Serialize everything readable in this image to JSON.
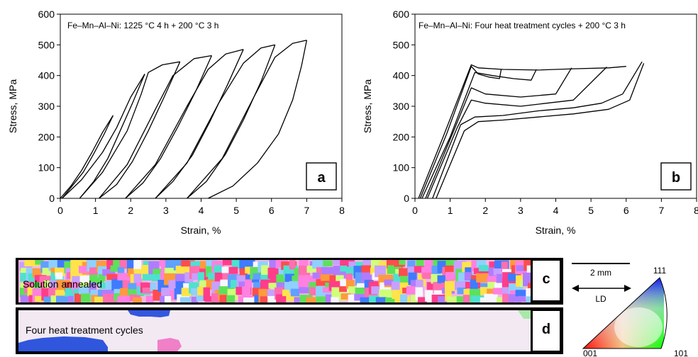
{
  "chart_data": [
    {
      "panel_label": "a",
      "type": "line",
      "title": "Fe–Mn–Al–Ni: 1225 °C 4 h + 200 °C 3 h",
      "xlabel": "Strain, %",
      "ylabel": "Stress, MPa",
      "xlim": [
        0,
        8
      ],
      "ylim": [
        0,
        600
      ],
      "xticks": [
        0,
        1,
        2,
        3,
        4,
        5,
        6,
        7,
        8
      ],
      "yticks": [
        0,
        100,
        200,
        300,
        400,
        500,
        600
      ],
      "grid": false,
      "series": [
        {
          "x": [
            0,
            0.3,
            0.6,
            0.9,
            1.2,
            1.5
          ],
          "y": [
            0,
            40,
            90,
            150,
            215,
            270
          ]
        },
        {
          "x": [
            1.5,
            1.25,
            0.95,
            0.65,
            0.3,
            0.05
          ],
          "y": [
            270,
            210,
            145,
            85,
            35,
            0
          ]
        },
        {
          "x": [
            0.05,
            0.6,
            1.2,
            1.6,
            2.0,
            2.4
          ],
          "y": [
            0,
            60,
            150,
            230,
            330,
            405
          ]
        },
        {
          "x": [
            2.4,
            2.05,
            1.7,
            1.35,
            0.95,
            0.55
          ],
          "y": [
            405,
            310,
            220,
            130,
            55,
            0
          ]
        },
        {
          "x": [
            0.55,
            1.2,
            1.9,
            2.3,
            2.5,
            2.9,
            3.4
          ],
          "y": [
            0,
            85,
            220,
            340,
            410,
            435,
            445
          ]
        },
        {
          "x": [
            3.4,
            2.95,
            2.5,
            2.05,
            1.6,
            1.1
          ],
          "y": [
            445,
            330,
            220,
            120,
            45,
            0
          ]
        },
        {
          "x": [
            1.1,
            1.9,
            2.7,
            3.2,
            3.8,
            4.3
          ],
          "y": [
            0,
            110,
            290,
            400,
            455,
            465
          ]
        },
        {
          "x": [
            4.3,
            3.85,
            3.35,
            2.85,
            2.35,
            1.85
          ],
          "y": [
            465,
            350,
            235,
            130,
            50,
            0
          ]
        },
        {
          "x": [
            1.85,
            2.7,
            3.6,
            4.2,
            4.7,
            5.2
          ],
          "y": [
            0,
            110,
            300,
            420,
            470,
            485
          ]
        },
        {
          "x": [
            5.2,
            4.75,
            4.25,
            3.75,
            3.2,
            2.7
          ],
          "y": [
            485,
            370,
            250,
            140,
            55,
            0
          ]
        },
        {
          "x": [
            2.7,
            3.6,
            4.5,
            5.2,
            5.7,
            6.1
          ],
          "y": [
            0,
            115,
            310,
            440,
            490,
            500
          ]
        },
        {
          "x": [
            6.1,
            5.7,
            5.2,
            4.7,
            4.15,
            3.6
          ],
          "y": [
            500,
            380,
            255,
            145,
            55,
            0
          ]
        },
        {
          "x": [
            3.6,
            4.6,
            5.5,
            6.1,
            6.6,
            7.0
          ],
          "y": [
            0,
            130,
            330,
            460,
            505,
            515
          ]
        },
        {
          "x": [
            7.0,
            6.85,
            6.6,
            6.2,
            5.6,
            4.9,
            4.2
          ],
          "y": [
            515,
            430,
            320,
            210,
            115,
            40,
            0
          ]
        }
      ]
    },
    {
      "panel_label": "b",
      "type": "line",
      "title": "Fe–Mn–Al–Ni: Four heat treatment cycles + 200 °C 3 h",
      "xlabel": "Strain, %",
      "ylabel": "Stress, MPa",
      "xlim": [
        0,
        8
      ],
      "ylim": [
        0,
        600
      ],
      "xticks": [
        0,
        1,
        2,
        3,
        4,
        5,
        6,
        7,
        8
      ],
      "yticks": [
        0,
        100,
        200,
        300,
        400,
        500,
        600
      ],
      "grid": false,
      "series": [
        {
          "x": [
            0.1,
            0.8,
            1.6,
            1.8,
            2.5,
            3.5,
            4.5,
            5.5,
            6.0
          ],
          "y": [
            0,
            200,
            435,
            425,
            420,
            418,
            422,
            425,
            430
          ]
        },
        {
          "x": [
            0.15,
            0.9,
            1.6,
            1.8,
            2.1,
            2.4,
            2.45
          ],
          "y": [
            0,
            210,
            430,
            405,
            395,
            390,
            420
          ]
        },
        {
          "x": [
            0.2,
            1.0,
            1.7,
            2.2,
            2.8,
            3.3,
            3.45
          ],
          "y": [
            0,
            200,
            410,
            400,
            390,
            385,
            420
          ]
        },
        {
          "x": [
            0.3,
            1.1,
            1.6,
            2.0,
            3.0,
            4.0,
            4.45
          ],
          "y": [
            0,
            220,
            360,
            340,
            330,
            340,
            425
          ]
        },
        {
          "x": [
            0.35,
            1.2,
            1.6,
            2.0,
            3.0,
            4.5,
            5.45
          ],
          "y": [
            0,
            230,
            320,
            310,
            300,
            320,
            428
          ]
        },
        {
          "x": [
            0.5,
            1.3,
            1.7,
            2.5,
            3.5,
            4.5,
            5.3,
            5.9,
            6.45
          ],
          "y": [
            0,
            240,
            265,
            270,
            285,
            295,
            310,
            340,
            445
          ]
        },
        {
          "x": [
            0.6,
            1.4,
            1.8,
            2.5,
            3.5,
            4.5,
            5.5,
            6.1,
            6.5
          ],
          "y": [
            0,
            220,
            250,
            255,
            265,
            275,
            290,
            320,
            440
          ]
        }
      ]
    }
  ],
  "maps": {
    "c_label": "c",
    "c_text": "Solution annealed",
    "d_label": "d",
    "d_text": "Four heat treatment cycles"
  },
  "legend": {
    "scale_text": "2 mm",
    "direction_text": "LD",
    "corner_111": "111",
    "corner_001": "001",
    "corner_101": "101"
  }
}
